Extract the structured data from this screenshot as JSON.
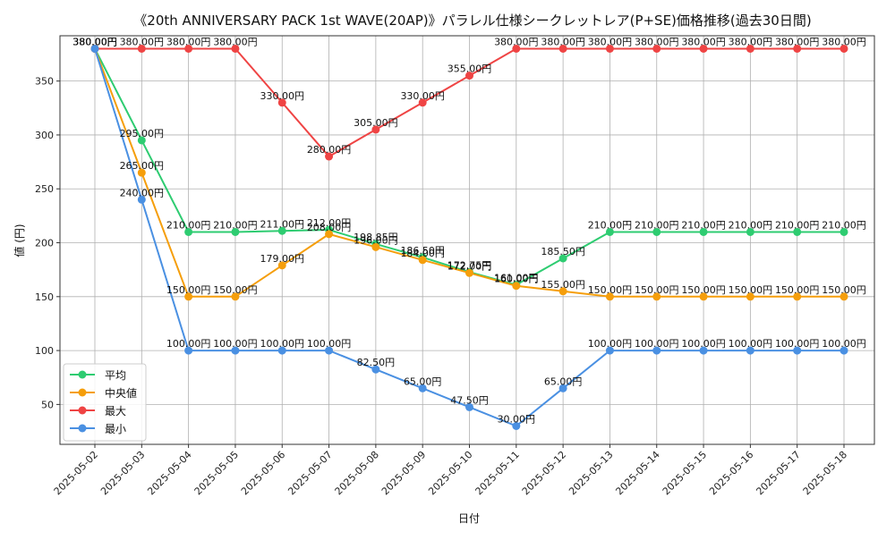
{
  "chart_data": {
    "type": "line",
    "title": "《20th ANNIVERSARY PACK 1st WAVE(20AP)》パラレル仕様シークレットレア(P+SE)価格推移(過去30日間)",
    "xlabel": "日付",
    "ylabel": "値 (円)",
    "ylim": [
      13,
      392
    ],
    "yticks": [
      50,
      100,
      150,
      200,
      250,
      300,
      350
    ],
    "grid": true,
    "legend_position": "lower-left",
    "value_suffix": "円",
    "categories": [
      "2025-05-02",
      "2025-05-03",
      "2025-05-04",
      "2025-05-05",
      "2025-05-06",
      "2025-05-07",
      "2025-05-08",
      "2025-05-09",
      "2025-05-10",
      "2025-05-11",
      "2025-05-12",
      "2025-05-13",
      "2025-05-14",
      "2025-05-15",
      "2025-05-16",
      "2025-05-17",
      "2025-05-18"
    ],
    "series": [
      {
        "name": "平均",
        "color": "#2ecc71",
        "values": [
          380,
          295,
          210,
          210,
          211,
          212,
          198.85,
          186.5,
          172.75,
          161,
          185.5,
          210,
          210,
          210,
          210,
          210,
          210
        ]
      },
      {
        "name": "中央値",
        "color": "#f59e0b",
        "values": [
          380,
          265,
          150,
          150,
          179,
          208,
          196,
          184,
          172,
          160,
          155,
          150,
          150,
          150,
          150,
          150,
          150
        ]
      },
      {
        "name": "最大",
        "color": "#ef4444",
        "values": [
          380,
          380,
          380,
          380,
          330,
          280,
          305,
          330,
          355,
          380,
          380,
          380,
          380,
          380,
          380,
          380,
          380
        ]
      },
      {
        "name": "最小",
        "color": "#4a90e2",
        "values": [
          380,
          240,
          100,
          100,
          100,
          100,
          82.5,
          65,
          47.5,
          30,
          65,
          100,
          100,
          100,
          100,
          100,
          100
        ]
      }
    ]
  }
}
